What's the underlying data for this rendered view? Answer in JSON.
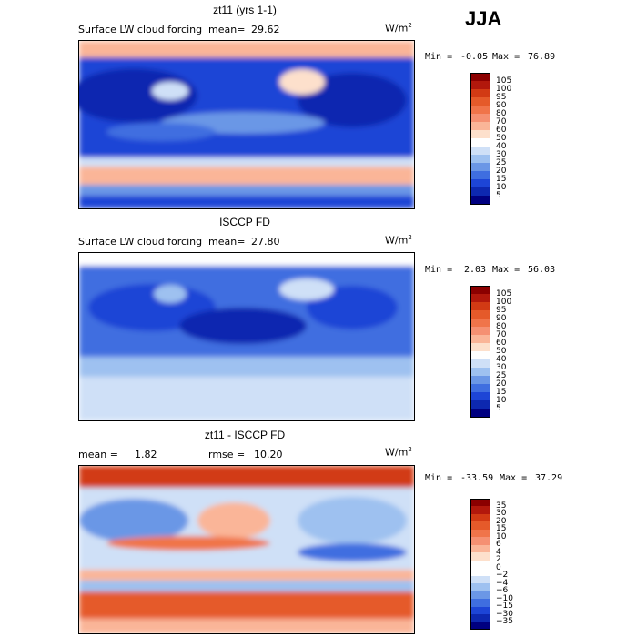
{
  "season": "JJA",
  "unit_base": "W/m",
  "unit_exp": "2",
  "panels": [
    {
      "title": "zt11 (yrs 1-1)",
      "left_label": "Surface LW cloud forcing",
      "mean_label": "mean=",
      "mean_value": "29.62",
      "min_label": "Min =",
      "min_value": "-0.05",
      "max_label": "Max =",
      "max_value": "76.89",
      "cbar_ticks": [
        "105",
        "100",
        "95",
        "90",
        "80",
        "70",
        "60",
        "50",
        "40",
        "30",
        "25",
        "20",
        "15",
        "10",
        "5"
      ],
      "cbar_colors": [
        "#8b0000",
        "#b2180c",
        "#d23a14",
        "#e55a2a",
        "#f0744a",
        "#f59072",
        "#fab598",
        "#fde0cc",
        "#ffffff",
        "#cfe0f7",
        "#9ec1f0",
        "#6b97e6",
        "#3f6ee0",
        "#1d45d6",
        "#0d28b0",
        "#000080"
      ]
    },
    {
      "title": "ISCCP FD",
      "left_label": "Surface LW cloud forcing",
      "mean_label": "mean=",
      "mean_value": "27.80",
      "min_label": "Min =",
      "min_value": "2.03",
      "max_label": "Max =",
      "max_value": "56.03",
      "cbar_ticks": [
        "105",
        "100",
        "95",
        "90",
        "80",
        "70",
        "60",
        "50",
        "40",
        "30",
        "25",
        "20",
        "15",
        "10",
        "5"
      ],
      "cbar_colors": [
        "#8b0000",
        "#b2180c",
        "#d23a14",
        "#e55a2a",
        "#f0744a",
        "#f59072",
        "#fab598",
        "#fde0cc",
        "#ffffff",
        "#cfe0f7",
        "#9ec1f0",
        "#6b97e6",
        "#3f6ee0",
        "#1d45d6",
        "#0d28b0",
        "#000080"
      ]
    },
    {
      "title": "zt11 - ISCCP FD",
      "mean_label": "mean =",
      "mean_value": "1.82",
      "rmse_label": "rmse =",
      "rmse_value": "10.20",
      "min_label": "Min =",
      "min_value": "-33.59",
      "max_label": "Max =",
      "max_value": "37.29",
      "cbar_ticks": [
        "35",
        "30",
        "20",
        "15",
        "10",
        "6",
        "4",
        "2",
        "0",
        "−2",
        "−4",
        "−6",
        "−10",
        "−15",
        "−30",
        "−35"
      ],
      "cbar_colors": [
        "#8b0000",
        "#b2180c",
        "#d23a14",
        "#e55a2a",
        "#f0744a",
        "#f59072",
        "#fab598",
        "#fde0cc",
        "#ffffff",
        "#ffffff",
        "#cfe0f7",
        "#9ec1f0",
        "#6b97e6",
        "#3f6ee0",
        "#1d45d6",
        "#0d28b0",
        "#000080"
      ]
    }
  ],
  "chart_data": [
    {
      "type": "heatmap",
      "title": "zt11 (yrs 1-1)",
      "variable": "Surface LW cloud forcing",
      "units": "W/m2",
      "mean": 29.62,
      "min": -0.05,
      "max": 76.89,
      "contour_levels": [
        5,
        10,
        15,
        20,
        25,
        30,
        40,
        50,
        60,
        70,
        80,
        90,
        95,
        100,
        105
      ]
    },
    {
      "type": "heatmap",
      "title": "ISCCP FD",
      "variable": "Surface LW cloud forcing",
      "units": "W/m2",
      "mean": 27.8,
      "min": 2.03,
      "max": 56.03,
      "contour_levels": [
        5,
        10,
        15,
        20,
        25,
        30,
        40,
        50,
        60,
        70,
        80,
        90,
        95,
        100,
        105
      ]
    },
    {
      "type": "heatmap",
      "title": "zt11 - ISCCP FD",
      "units": "W/m2",
      "mean": 1.82,
      "rmse": 10.2,
      "min": -33.59,
      "max": 37.29,
      "contour_levels": [
        -35,
        -30,
        -15,
        -10,
        -6,
        -4,
        -2,
        0,
        2,
        4,
        6,
        10,
        15,
        20,
        30,
        35
      ]
    }
  ]
}
